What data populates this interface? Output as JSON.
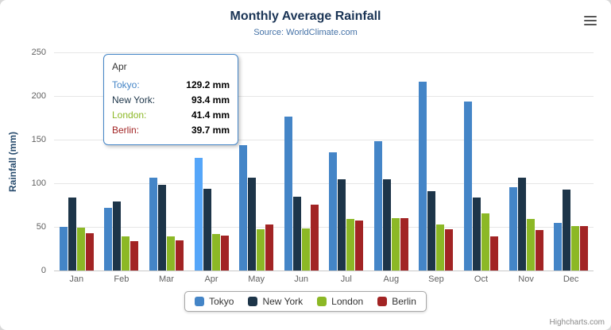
{
  "header": {
    "title": "Monthly Average Rainfall",
    "subtitle": "Source: WorldClimate.com"
  },
  "chart_data": {
    "type": "bar",
    "title": "Monthly Average Rainfall",
    "subtitle": "Source: WorldClimate.com",
    "categories": [
      "Jan",
      "Feb",
      "Mar",
      "Apr",
      "May",
      "Jun",
      "Jul",
      "Aug",
      "Sep",
      "Oct",
      "Nov",
      "Dec"
    ],
    "series": [
      {
        "name": "Tokyo",
        "color": "#4485c7",
        "values": [
          49.9,
          71.5,
          106.4,
          129.2,
          144.0,
          176.0,
          135.6,
          148.5,
          216.4,
          194.1,
          95.6,
          54.4
        ]
      },
      {
        "name": "New York",
        "color": "#1d3549",
        "values": [
          83.6,
          78.8,
          98.5,
          93.4,
          106.0,
          84.5,
          105.0,
          104.3,
          91.2,
          83.5,
          106.6,
          92.3
        ]
      },
      {
        "name": "London",
        "color": "#8cb826",
        "values": [
          48.9,
          38.8,
          39.3,
          41.4,
          47.0,
          48.3,
          59.0,
          59.6,
          52.4,
          65.2,
          59.3,
          51.2
        ]
      },
      {
        "name": "Berlin",
        "color": "#a22424",
        "values": [
          42.4,
          33.2,
          34.5,
          39.7,
          52.6,
          75.5,
          57.4,
          60.4,
          47.6,
          39.1,
          46.8,
          51.1
        ]
      }
    ],
    "xlabel": "",
    "ylabel": "Rainfall (mm)",
    "ylim": [
      0,
      250
    ],
    "yticks": [
      0,
      50,
      100,
      150,
      200,
      250
    ],
    "grid": true,
    "legend_position": "bottom"
  },
  "hover": {
    "series_index": 0,
    "point_index": 3
  },
  "tooltip": {
    "header": "Apr",
    "rows": [
      {
        "name": "Tokyo:",
        "value": "129.2 mm",
        "color": "#4485c7"
      },
      {
        "name": "New York:",
        "value": "93.4 mm",
        "color": "#1d3549"
      },
      {
        "name": "London:",
        "value": "41.4 mm",
        "color": "#8cb826"
      },
      {
        "name": "Berlin:",
        "value": "39.7 mm",
        "color": "#a22424"
      }
    ]
  },
  "credits": {
    "text": "Highcharts.com"
  },
  "icons": {
    "menu": "hamburger-icon"
  }
}
